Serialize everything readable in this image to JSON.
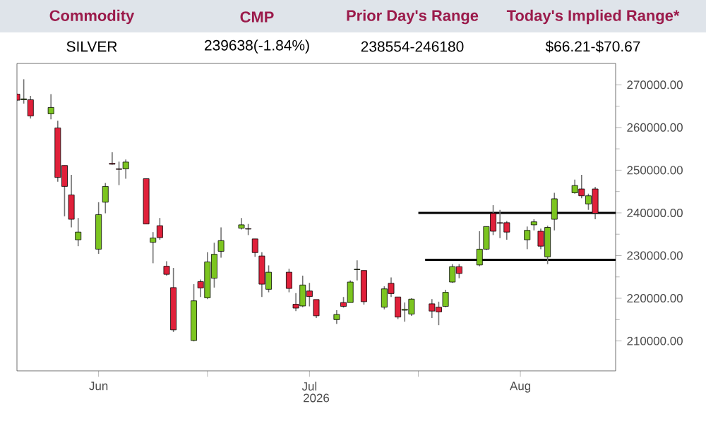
{
  "chart_data": {
    "type": "candlestick",
    "annotations": [
      "Commodity",
      "CMP",
      "Prior Day's Range",
      "Today's Implied Range*",
      "SILVER",
      "239638(-1.84%)",
      "238554-246180",
      "$66.21-$70.67"
    ],
    "xlabel": "2026",
    "x": [
      "2026-06-03",
      "2026-06-04",
      "2026-06-05",
      "2026-06-08",
      "2026-06-09",
      "2026-06-10",
      "2026-06-11",
      "2026-06-12",
      "2026-06-15",
      "2026-06-16",
      "2026-06-17",
      "2026-06-18",
      "2026-06-19",
      "2026-06-22",
      "2026-06-23",
      "2026-06-24",
      "2026-06-25",
      "2026-06-26",
      "2026-06-29",
      "2026-06-30",
      "2026-07-01",
      "2026-07-02",
      "2026-07-03",
      "2026-07-06",
      "2026-07-07",
      "2026-07-08",
      "2026-07-09",
      "2026-07-10",
      "2026-07-13",
      "2026-07-14",
      "2026-07-15",
      "2026-07-16",
      "2026-07-17",
      "2026-07-20",
      "2026-07-21",
      "2026-07-22",
      "2026-07-23",
      "2026-07-24",
      "2026-07-27",
      "2026-07-28",
      "2026-07-29",
      "2026-07-30",
      "2026-07-31",
      "2026-08-03",
      "2026-08-04",
      "2026-08-05",
      "2026-08-06",
      "2026-08-07",
      "2026-08-10",
      "2026-08-11",
      "2026-08-12",
      "2026-08-13",
      "2026-08-14",
      "2026-08-17",
      "2026-08-18",
      "2026-08-19",
      "2026-08-20",
      "2026-08-21",
      "2026-08-24",
      "2026-08-25",
      "2026-08-26",
      "2026-08-27"
    ],
    "ohlc": [
      [
        267800,
        268000,
        266200,
        266400
      ],
      [
        266500,
        271300,
        265600,
        266700
      ],
      [
        266500,
        267400,
        262100,
        262700
      ],
      [
        263200,
        267800,
        261900,
        264700
      ],
      [
        259900,
        261600,
        247300,
        248300
      ],
      [
        251100,
        251100,
        239200,
        246200
      ],
      [
        244200,
        248900,
        236600,
        238500
      ],
      [
        233700,
        238800,
        232200,
        235500
      ],
      [
        231500,
        242500,
        230400,
        239600
      ],
      [
        242500,
        247000,
        239900,
        246200
      ],
      [
        251600,
        254200,
        251300,
        251400
      ],
      [
        250300,
        252000,
        246500,
        250200
      ],
      [
        250300,
        252500,
        248000,
        251900
      ],
      [
        248000,
        248000,
        237400,
        237400
      ],
      [
        233100,
        235500,
        228200,
        234100
      ],
      [
        237000,
        238800,
        233700,
        234200
      ],
      [
        227500,
        228700,
        225300,
        225600
      ],
      [
        222500,
        227100,
        212100,
        212600
      ],
      [
        210100,
        223300,
        209900,
        219400
      ],
      [
        223900,
        224400,
        220300,
        222400
      ],
      [
        220100,
        230800,
        219800,
        228500
      ],
      [
        224700,
        233000,
        222500,
        230300
      ],
      [
        231000,
        236600,
        229500,
        233500
      ],
      [
        236400,
        238800,
        236100,
        237200
      ],
      [
        236300,
        237400,
        234800,
        236200
      ],
      [
        233900,
        233900,
        229700,
        230700
      ],
      [
        229900,
        230800,
        220300,
        223300
      ],
      [
        222100,
        227700,
        221400,
        226100
      ],
      [
        226100,
        226900,
        221400,
        222300
      ],
      [
        218600,
        221200,
        217000,
        217700
      ],
      [
        218200,
        225300,
        217900,
        223100
      ],
      [
        221700,
        223600,
        218100,
        220400
      ],
      [
        219700,
        219700,
        215400,
        215900
      ],
      [
        215000,
        217200,
        214000,
        216200
      ],
      [
        219000,
        220300,
        217800,
        218100
      ],
      [
        219000,
        224200,
        219000,
        223800
      ],
      [
        226700,
        228900,
        224200,
        226800
      ],
      [
        226500,
        226500,
        218500,
        219200
      ],
      [
        217900,
        222800,
        217400,
        222200
      ],
      [
        223500,
        224900,
        220300,
        221100
      ],
      [
        220300,
        220300,
        215100,
        215600
      ],
      [
        217200,
        219000,
        214500,
        217400
      ],
      [
        216300,
        220000,
        215900,
        219800
      ],
      [
        218700,
        219800,
        215400,
        217000
      ],
      [
        217900,
        219200,
        213700,
        216800
      ],
      [
        218100,
        222000,
        217900,
        221400
      ],
      [
        223800,
        228000,
        223600,
        227400
      ],
      [
        227400,
        228000,
        224700,
        225800
      ],
      [
        227800,
        235700,
        227500,
        231500
      ],
      [
        231500,
        236800,
        231300,
        236800
      ],
      [
        239900,
        241800,
        234800,
        235700
      ],
      [
        237700,
        240700,
        234100,
        237600
      ],
      [
        237700,
        238100,
        233700,
        235500
      ],
      [
        233700,
        236800,
        231500,
        235900
      ],
      [
        237200,
        238500,
        235900,
        237900
      ],
      [
        235700,
        236300,
        231500,
        232200
      ],
      [
        229700,
        237000,
        228000,
        236600
      ],
      [
        238500,
        244700,
        235900,
        243300
      ],
      [
        244700,
        247800,
        244500,
        246400
      ],
      [
        245600,
        248900,
        243400,
        244000
      ],
      [
        242100,
        244500,
        240700,
        244000
      ],
      [
        245600,
        246100,
        238500,
        239900
      ]
    ],
    "colors": [
      "#e0203a",
      "#7cc520",
      "#e0203a",
      "#7cc520",
      "#e0203a",
      "#e0203a",
      "#e0203a",
      "#7cc520",
      "#7cc520",
      "#7cc520",
      "#e0203a",
      "#e0203a",
      "#7cc520",
      "#e0203a",
      "#7cc520",
      "#e0203a",
      "#e0203a",
      "#e0203a",
      "#7cc520",
      "#e0203a",
      "#7cc520",
      "#7cc520",
      "#7cc520",
      "#7cc520",
      "#e0203a",
      "#e0203a",
      "#e0203a",
      "#7cc520",
      "#e0203a",
      "#e0203a",
      "#7cc520",
      "#e0203a",
      "#e0203a",
      "#7cc520",
      "#e0203a",
      "#7cc520",
      "#7cc520",
      "#e0203a",
      "#7cc520",
      "#e0203a",
      "#e0203a",
      "#7cc520",
      "#7cc520",
      "#e0203a",
      "#e0203a",
      "#7cc520",
      "#7cc520",
      "#e0203a",
      "#7cc520",
      "#7cc520",
      "#e0203a",
      "#e0203a",
      "#e0203a",
      "#7cc520",
      "#7cc520",
      "#e0203a",
      "#7cc520",
      "#7cc520",
      "#7cc520",
      "#e0203a",
      "#7cc520",
      "#e0203a"
    ],
    "series": [
      {
        "type": "line",
        "color": "#000000",
        "x": [
          "2026-08-01",
          "2026-08-30"
        ],
        "values": [
          240000,
          240000
        ]
      },
      {
        "type": "line",
        "color": "#000000",
        "x": [
          "2026-08-02",
          "2026-08-30"
        ],
        "values": [
          229000,
          229000
        ]
      }
    ],
    "xlim": [
      "2026-06-03",
      "2026-08-30"
    ],
    "xticks": [
      {
        "value": "2026-06-15",
        "label": "Jun"
      },
      {
        "value": "2026-07-01",
        "label": null
      },
      {
        "value": "2026-07-16",
        "label": "Jul"
      },
      {
        "value": "2026-08-01",
        "label": null
      },
      {
        "value": "2026-08-16",
        "label": "Aug"
      }
    ],
    "ylim": [
      203000,
      275000
    ],
    "yticks": [
      {
        "value": 210000,
        "label": "210000.00"
      },
      {
        "value": 220000,
        "label": "220000.00"
      },
      {
        "value": 230000,
        "label": "230000.00"
      },
      {
        "value": 240000,
        "label": "240000.00"
      },
      {
        "value": 250000,
        "label": "250000.00"
      },
      {
        "value": 260000,
        "label": "260000.00"
      },
      {
        "value": 270000,
        "label": "270000.00"
      }
    ],
    "tick_labels": true
  }
}
